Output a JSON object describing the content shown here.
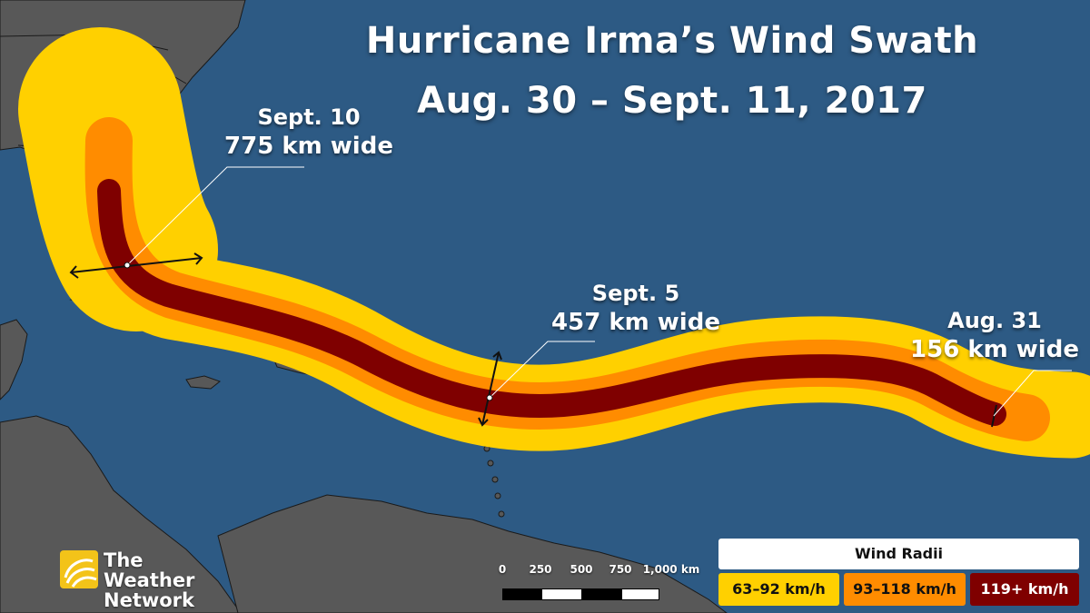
{
  "title": {
    "line1": "Hurricane Irma’s Wind Swath",
    "line2": "Aug. 30 – Sept. 11, 2017"
  },
  "annotations": [
    {
      "date": "Sept. 10",
      "width_text": "775 km wide"
    },
    {
      "date": "Sept. 5",
      "width_text": "457 km wide"
    },
    {
      "date": "Aug. 31",
      "width_text": "156 km wide"
    }
  ],
  "legend": {
    "title": "Wind Radii",
    "items": [
      {
        "label": "63–92 km/h",
        "color": "#ffd000",
        "text_color": "#111111"
      },
      {
        "label": "93–118 km/h",
        "color": "#ff8c00",
        "text_color": "#111111"
      },
      {
        "label": "119+ km/h",
        "color": "#7f0000",
        "text_color": "#ffffff"
      }
    ]
  },
  "scale": {
    "ticks": [
      "0",
      "250",
      "500",
      "750",
      "1,000 km"
    ]
  },
  "logo": {
    "line1": "The Weather",
    "line2": "Network"
  },
  "colors": {
    "ocean": "#2d5a84",
    "land": "#5a5a5a",
    "swath_outer": "#ffd000",
    "swath_middle": "#ff8c00",
    "swath_inner": "#7f0000"
  }
}
